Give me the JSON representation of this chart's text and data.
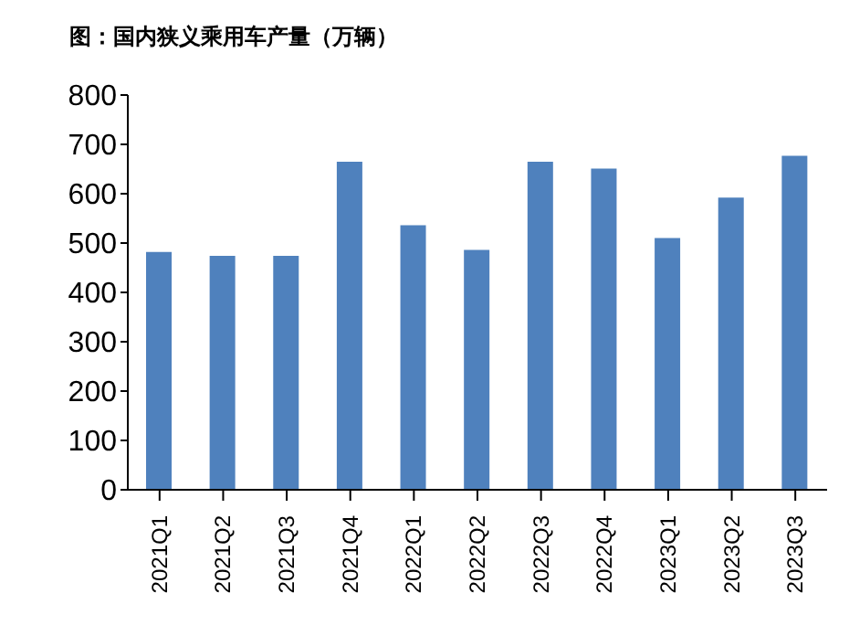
{
  "chart_data": {
    "type": "bar",
    "title": "图：国内狭义乘用车产量（万辆）",
    "categories": [
      "2021Q1",
      "2021Q2",
      "2021Q3",
      "2021Q4",
      "2022Q1",
      "2022Q2",
      "2022Q3",
      "2022Q4",
      "2023Q1",
      "2023Q2",
      "2023Q3"
    ],
    "values": [
      482,
      474,
      474,
      665,
      536,
      486,
      665,
      651,
      510,
      592,
      677
    ],
    "color": "#4f81bd",
    "ylim": [
      0,
      800
    ],
    "yticks": [
      0,
      100,
      200,
      300,
      400,
      500,
      600,
      700,
      800
    ],
    "grid": false,
    "legend": false
  }
}
